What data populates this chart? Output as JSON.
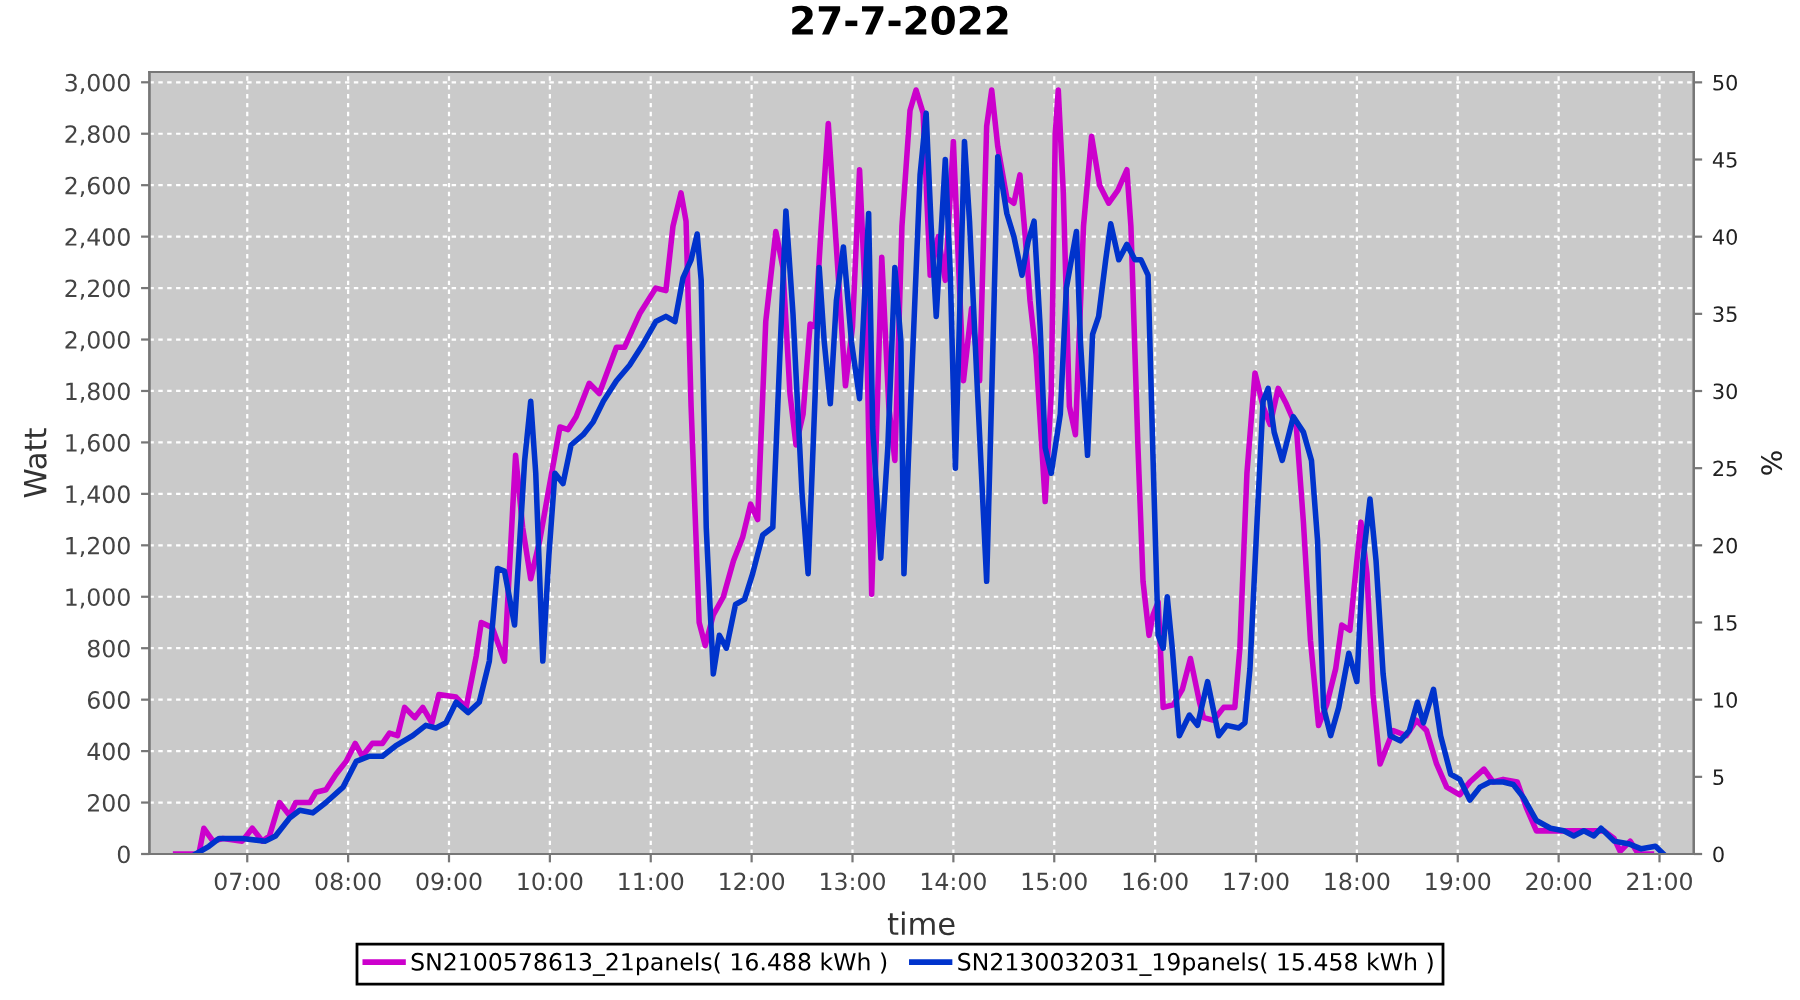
{
  "chart_data": {
    "type": "line",
    "title": "27-7-2022",
    "xlabel": "time",
    "ylabel": "Watt",
    "y2label": "%",
    "xlim": [
      6.03,
      21.34
    ],
    "xticks": [
      {
        "value": 7,
        "label": "07:00"
      },
      {
        "value": 8,
        "label": "08:00"
      },
      {
        "value": 9,
        "label": "09:00"
      },
      {
        "value": 10,
        "label": "10:00"
      },
      {
        "value": 11,
        "label": "11:00"
      },
      {
        "value": 12,
        "label": "12:00"
      },
      {
        "value": 13,
        "label": "13:00"
      },
      {
        "value": 14,
        "label": "14:00"
      },
      {
        "value": 15,
        "label": "15:00"
      },
      {
        "value": 16,
        "label": "16:00"
      },
      {
        "value": 17,
        "label": "17:00"
      },
      {
        "value": 18,
        "label": "18:00"
      },
      {
        "value": 19,
        "label": "19:00"
      },
      {
        "value": 20,
        "label": "20:00"
      },
      {
        "value": 21,
        "label": "21:00"
      }
    ],
    "ylim": [
      0,
      3040
    ],
    "yticks": [
      0,
      200,
      400,
      600,
      800,
      {
        "value": 1000,
        "label": "1,000"
      },
      {
        "value": 1200,
        "label": "1,200"
      },
      {
        "value": 1400,
        "label": "1,400"
      },
      {
        "value": 1600,
        "label": "1,600"
      },
      {
        "value": 1800,
        "label": "1,800"
      },
      {
        "value": 2000,
        "label": "2,000"
      },
      {
        "value": 2200,
        "label": "2,200"
      },
      {
        "value": 2400,
        "label": "2,400"
      },
      {
        "value": 2600,
        "label": "2,600"
      },
      {
        "value": 2800,
        "label": "2,800"
      },
      {
        "value": 3000,
        "label": "3,000"
      }
    ],
    "y2lim": [
      0,
      50.67
    ],
    "y2ticks": [
      0,
      5,
      10,
      15,
      20,
      25,
      30,
      35,
      40,
      45,
      50
    ],
    "grid": true,
    "legend": "bottom",
    "series": [
      {
        "name": "SN2100578613_21panels( 16.488 kWh )",
        "color": "#cc00cc",
        "x": [
          6.29,
          6.52,
          6.57,
          6.66,
          6.76,
          6.95,
          7.05,
          7.15,
          7.22,
          7.32,
          7.42,
          7.48,
          7.62,
          7.68,
          7.78,
          7.88,
          7.98,
          8.07,
          8.14,
          8.24,
          8.34,
          8.41,
          8.49,
          8.56,
          8.66,
          8.74,
          8.83,
          8.9,
          9.07,
          9.17,
          9.27,
          9.32,
          9.43,
          9.55,
          9.66,
          9.73,
          9.81,
          9.9,
          9.99,
          10.1,
          10.18,
          10.26,
          10.39,
          10.49,
          10.66,
          10.74,
          10.89,
          11.05,
          11.15,
          11.22,
          11.3,
          11.35,
          11.4,
          11.48,
          11.54,
          11.62,
          11.72,
          11.82,
          11.91,
          11.99,
          12.06,
          12.14,
          12.24,
          12.31,
          12.38,
          12.44,
          12.51,
          12.58,
          12.63,
          12.69,
          12.76,
          12.84,
          12.93,
          13.0,
          13.07,
          13.14,
          13.19,
          13.29,
          13.36,
          13.42,
          13.49,
          13.57,
          13.63,
          13.7,
          13.77,
          13.85,
          13.92,
          14.0,
          14.1,
          14.18,
          14.26,
          14.33,
          14.38,
          14.44,
          14.53,
          14.6,
          14.66,
          14.71,
          14.76,
          14.82,
          14.91,
          14.97,
          15.01,
          15.04,
          15.09,
          15.15,
          15.21,
          15.29,
          15.37,
          15.45,
          15.54,
          15.63,
          15.72,
          15.76,
          15.83,
          15.88,
          15.94,
          15.98,
          16.03,
          16.08,
          16.18,
          16.27,
          16.35,
          16.44,
          16.48,
          16.58,
          16.68,
          16.79,
          16.84,
          16.91,
          16.99,
          17.07,
          17.14,
          17.22,
          17.3,
          17.4,
          17.47,
          17.54,
          17.62,
          17.7,
          17.79,
          17.85,
          17.93,
          18.0,
          18.04,
          18.1,
          18.16,
          18.23,
          18.29,
          18.36,
          18.49,
          18.59,
          18.69,
          18.79,
          18.89,
          19.02,
          19.12,
          19.26,
          19.35,
          19.45,
          19.59,
          19.68,
          19.78,
          19.92,
          20.11,
          20.31,
          20.45,
          20.55,
          20.61,
          20.71,
          20.79,
          20.92
        ],
        "values": [
          0,
          0,
          100,
          50,
          60,
          50,
          100,
          50,
          70,
          200,
          150,
          200,
          200,
          240,
          250,
          310,
          360,
          430,
          380,
          430,
          430,
          470,
          460,
          570,
          530,
          570,
          510,
          620,
          610,
          570,
          770,
          900,
          880,
          750,
          1550,
          1270,
          1070,
          1220,
          1420,
          1660,
          1650,
          1700,
          1830,
          1790,
          1970,
          1970,
          2100,
          2200,
          2190,
          2440,
          2570,
          2460,
          1740,
          900,
          810,
          930,
          1000,
          1140,
          1230,
          1360,
          1300,
          2070,
          2420,
          2280,
          1790,
          1590,
          1710,
          2060,
          2050,
          2440,
          2840,
          2360,
          1820,
          2050,
          2660,
          2050,
          1010,
          2320,
          1740,
          1530,
          2440,
          2890,
          2970,
          2880,
          2250,
          2400,
          2230,
          2770,
          1840,
          2120,
          1840,
          2830,
          2970,
          2750,
          2550,
          2530,
          2640,
          2410,
          2150,
          1940,
          1370,
          1790,
          2800,
          2970,
          2570,
          1740,
          1630,
          2440,
          2790,
          2600,
          2530,
          2580,
          2660,
          2440,
          1580,
          1060,
          850,
          930,
          980,
          570,
          580,
          640,
          760,
          590,
          530,
          520,
          570,
          570,
          800,
          1480,
          1870,
          1740,
          1670,
          1810,
          1750,
          1660,
          1290,
          830,
          500,
          580,
          720,
          890,
          870,
          1140,
          1290,
          1090,
          620,
          350,
          410,
          480,
          460,
          520,
          480,
          350,
          260,
          230,
          280,
          330,
          280,
          290,
          280,
          180,
          90,
          90,
          90,
          90,
          90,
          60,
          10,
          50,
          0,
          0
        ]
      },
      {
        "name": "SN2130032031_19panels( 15.458 kWh )",
        "color": "#0033cc",
        "x": [
          6.49,
          6.62,
          6.72,
          6.95,
          7.18,
          7.28,
          7.42,
          7.52,
          7.65,
          7.78,
          7.95,
          8.08,
          8.21,
          8.34,
          8.47,
          8.64,
          8.77,
          8.87,
          8.97,
          9.07,
          9.19,
          9.3,
          9.4,
          9.48,
          9.55,
          9.65,
          9.75,
          9.81,
          9.86,
          9.93,
          9.99,
          10.05,
          10.13,
          10.21,
          10.33,
          10.43,
          10.53,
          10.66,
          10.79,
          10.92,
          11.05,
          11.15,
          11.24,
          11.32,
          11.4,
          11.46,
          11.5,
          11.55,
          11.62,
          11.68,
          11.75,
          11.84,
          11.93,
          12.01,
          12.11,
          12.21,
          12.28,
          12.34,
          12.41,
          12.5,
          12.56,
          12.63,
          12.67,
          12.72,
          12.78,
          12.84,
          12.91,
          12.99,
          13.07,
          13.16,
          13.2,
          13.28,
          13.35,
          13.42,
          13.48,
          13.51,
          13.58,
          13.67,
          13.73,
          13.78,
          13.83,
          13.92,
          13.97,
          14.02,
          14.11,
          14.16,
          14.24,
          14.33,
          14.38,
          14.44,
          14.53,
          14.6,
          14.68,
          14.74,
          14.8,
          14.86,
          14.91,
          14.97,
          15.06,
          15.12,
          15.22,
          15.26,
          15.33,
          15.38,
          15.44,
          15.51,
          15.56,
          15.64,
          15.72,
          15.8,
          15.86,
          15.93,
          15.98,
          16.03,
          16.08,
          16.12,
          16.17,
          16.24,
          16.34,
          16.42,
          16.52,
          16.63,
          16.71,
          16.83,
          16.89,
          16.94,
          17.01,
          17.07,
          17.12,
          17.18,
          17.26,
          17.37,
          17.47,
          17.55,
          17.61,
          17.67,
          17.74,
          17.82,
          17.92,
          18.0,
          18.06,
          18.13,
          18.19,
          18.26,
          18.33,
          18.43,
          18.52,
          18.6,
          18.66,
          18.76,
          18.83,
          18.93,
          19.02,
          19.12,
          19.22,
          19.32,
          19.45,
          19.55,
          19.65,
          19.78,
          19.92,
          20.05,
          20.15,
          20.25,
          20.35,
          20.42,
          20.55,
          20.69,
          20.82,
          20.96,
          21.04
        ],
        "values": [
          0,
          30,
          60,
          60,
          50,
          70,
          140,
          170,
          160,
          200,
          260,
          360,
          380,
          380,
          420,
          460,
          500,
          490,
          510,
          590,
          550,
          590,
          750,
          1110,
          1100,
          890,
          1530,
          1760,
          1480,
          750,
          1160,
          1480,
          1440,
          1590,
          1630,
          1680,
          1760,
          1840,
          1900,
          1980,
          2070,
          2090,
          2070,
          2240,
          2310,
          2410,
          2230,
          1270,
          700,
          850,
          800,
          970,
          990,
          1090,
          1240,
          1270,
          1940,
          2500,
          2100,
          1400,
          1090,
          1790,
          2280,
          1990,
          1750,
          2150,
          2360,
          1990,
          1770,
          2490,
          1660,
          1150,
          1580,
          2280,
          1990,
          1090,
          1790,
          2640,
          2880,
          2440,
          2090,
          2700,
          2250,
          1500,
          2770,
          2460,
          1790,
          1060,
          1790,
          2710,
          2490,
          2400,
          2250,
          2380,
          2460,
          2050,
          1580,
          1480,
          1710,
          2200,
          2420,
          1990,
          1550,
          2020,
          2090,
          2310,
          2450,
          2310,
          2370,
          2310,
          2310,
          2250,
          1530,
          850,
          800,
          1000,
          800,
          460,
          540,
          500,
          670,
          460,
          500,
          490,
          510,
          720,
          1290,
          1760,
          1810,
          1640,
          1530,
          1700,
          1640,
          1530,
          1220,
          570,
          460,
          570,
          780,
          670,
          1140,
          1380,
          1140,
          700,
          460,
          440,
          480,
          590,
          510,
          640,
          460,
          310,
          290,
          210,
          260,
          280,
          280,
          270,
          220,
          130,
          100,
          90,
          70,
          90,
          70,
          100,
          50,
          40,
          20,
          30,
          0
        ]
      }
    ]
  }
}
